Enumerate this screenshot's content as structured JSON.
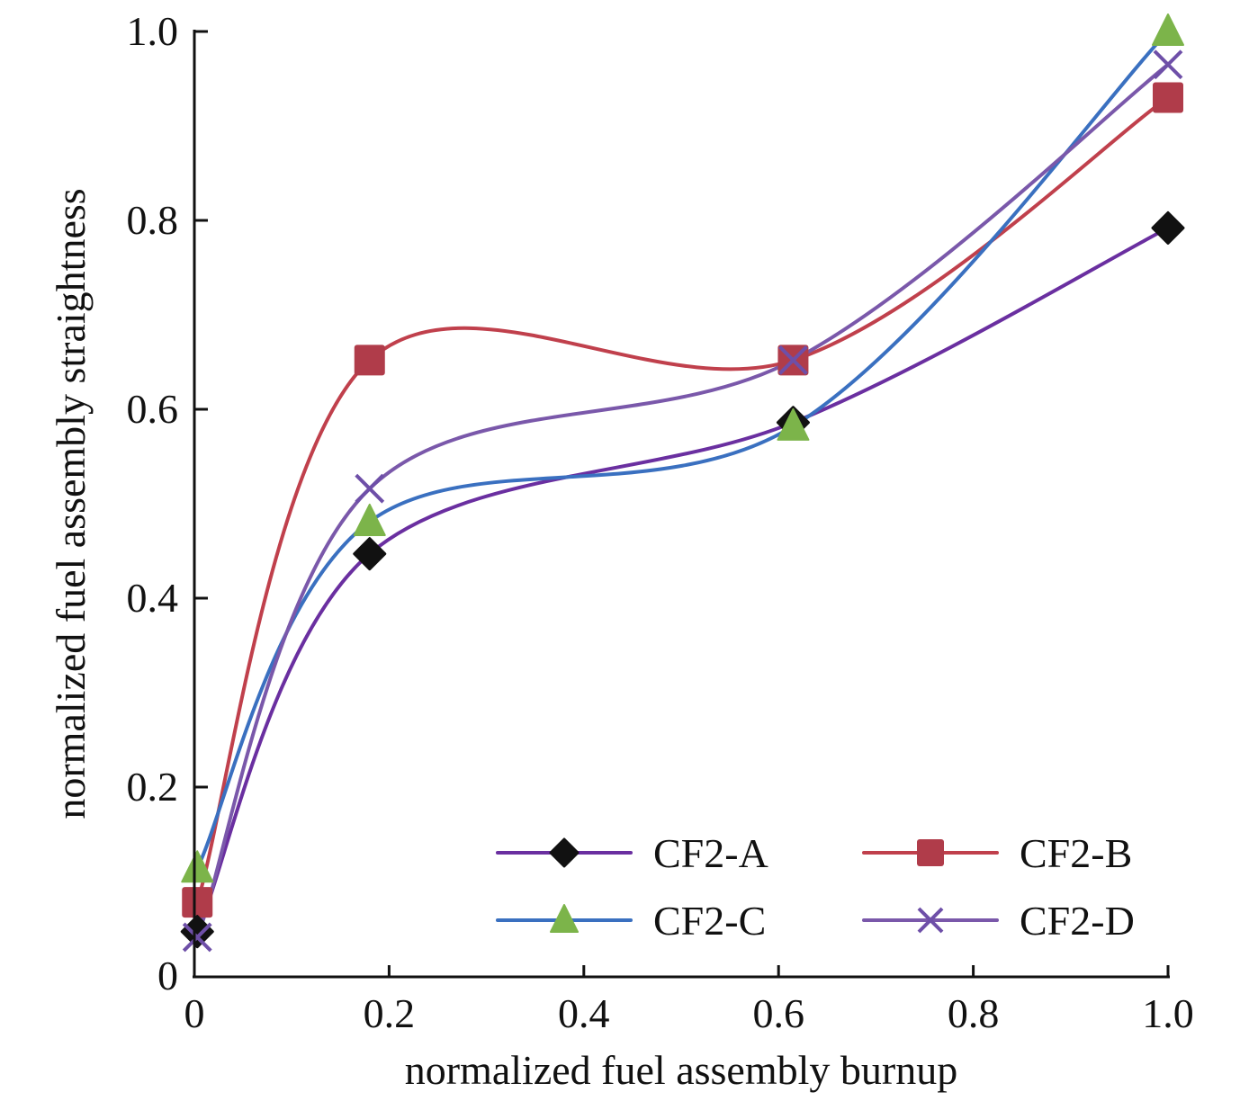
{
  "chart_data": {
    "type": "line",
    "title": "",
    "xlabel": "normalized fuel assembly burnup",
    "ylabel": "normalized fuel assembly straightness",
    "xlim": [
      0,
      1.0
    ],
    "ylim": [
      0,
      1.0
    ],
    "xticks": [
      0,
      0.2,
      0.4,
      0.6,
      0.8,
      1.0
    ],
    "xtick_labels": [
      "0",
      "0.2",
      "0.4",
      "0.6",
      "0.8",
      "1.0"
    ],
    "yticks": [
      0,
      0.2,
      0.4,
      0.6,
      0.8,
      1.0
    ],
    "ytick_labels": [
      "0",
      "0.2",
      "0.4",
      "0.6",
      "0.8",
      "1.0"
    ],
    "grid": false,
    "smooth": true,
    "legend_position": "bottom-right",
    "series": [
      {
        "name": "CF2-A",
        "line_color": "#6a2fa0",
        "marker": "diamond",
        "marker_color": "#111111",
        "x": [
          0.003,
          0.18,
          0.615,
          1.0
        ],
        "y": [
          0.047,
          0.447,
          0.586,
          0.792
        ]
      },
      {
        "name": "CF2-B",
        "line_color": "#c0404c",
        "marker": "square",
        "marker_color": "#b03c4a",
        "x": [
          0.003,
          0.18,
          0.615,
          1.0
        ],
        "y": [
          0.078,
          0.652,
          0.652,
          0.93
        ]
      },
      {
        "name": "CF2-C",
        "line_color": "#3a70c0",
        "marker": "triangle",
        "marker_color": "#7cb44a",
        "x": [
          0.003,
          0.18,
          0.615,
          1.0
        ],
        "y": [
          0.114,
          0.481,
          0.582,
          1.0
        ]
      },
      {
        "name": "CF2-D",
        "line_color": "#7a58aa",
        "marker": "x",
        "marker_color": "#6e4fa8",
        "x": [
          0.003,
          0.18,
          0.615,
          1.0
        ],
        "y": [
          0.041,
          0.516,
          0.652,
          0.965
        ]
      }
    ]
  }
}
